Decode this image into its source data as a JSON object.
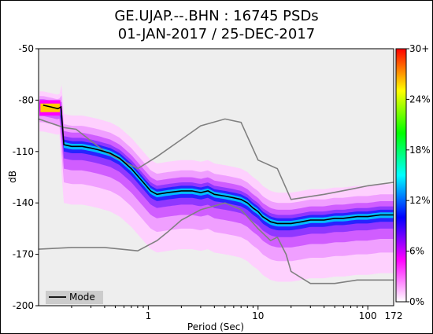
{
  "chart_data": {
    "type": "heatmap",
    "title_line1": "GE.UJAP.--.BHN : 16745 PSDs",
    "title_line2": "01-JAN-2017 / 25-DEC-2017",
    "xlabel": "Period (Sec)",
    "ylabel": "dB",
    "x_scale": "log",
    "xlim": [
      0.1,
      172
    ],
    "ylim": [
      -200,
      -50
    ],
    "y_ticks": [
      -50,
      -80,
      -110,
      -140,
      -170,
      -200
    ],
    "x_ticks": [
      {
        "value": 1,
        "label": "1"
      },
      {
        "value": 10,
        "label": "10"
      },
      {
        "value": 100,
        "label": "100"
      },
      {
        "value": 172,
        "label": "172"
      }
    ],
    "colorbar": {
      "ticks": [
        "0%",
        "6%",
        "12%",
        "18%",
        "24%",
        "30+"
      ],
      "min_percent": 0,
      "max_percent": 30,
      "colors": [
        "#ffffff",
        "#ff00ff",
        "#0000ff",
        "#00ffff",
        "#00ff00",
        "#ffff00",
        "#ff0000"
      ]
    },
    "legend": {
      "position": "bottom-left",
      "entries": [
        "Mode"
      ]
    },
    "mode_series": {
      "name": "Mode",
      "color": "#000000",
      "x": [
        0.11,
        0.13,
        0.15,
        0.16,
        0.17,
        0.2,
        0.25,
        0.3,
        0.35,
        0.45,
        0.55,
        0.7,
        0.9,
        1.05,
        1.2,
        1.5,
        2,
        2.5,
        3,
        3.5,
        4,
        5,
        6,
        7,
        8,
        9,
        10,
        11,
        13,
        15,
        20,
        25,
        30,
        40,
        50,
        60,
        80,
        100,
        130,
        172
      ],
      "y": [
        -83,
        -84,
        -85,
        -84,
        -106,
        -107,
        -107,
        -108,
        -109,
        -111,
        -114,
        -120,
        -128,
        -133,
        -135,
        -134,
        -133,
        -133,
        -134,
        -133,
        -135,
        -136,
        -137,
        -138,
        -140,
        -143,
        -145,
        -148,
        -151,
        -152,
        -152,
        -151,
        -150,
        -150,
        -149,
        -149,
        -148,
        -148,
        -147,
        -147
      ]
    },
    "noise_models": [
      {
        "name": "high",
        "color": "#808080",
        "x": [
          0.1,
          0.17,
          0.22,
          0.4,
          0.8,
          1.2,
          2,
          3,
          5,
          7,
          10,
          15,
          20,
          40,
          70,
          100,
          172
        ],
        "y": [
          -91,
          -96,
          -97,
          -110,
          -120,
          -113,
          -103,
          -95,
          -91,
          -93,
          -115,
          -120,
          -138,
          -135,
          -132,
          -130,
          -128
        ]
      },
      {
        "name": "low",
        "color": "#808080",
        "x": [
          0.1,
          0.2,
          0.4,
          0.8,
          1.2,
          1.5,
          2,
          3,
          5,
          7,
          10,
          13,
          15,
          18,
          20,
          30,
          50,
          80,
          100,
          172
        ],
        "y": [
          -167,
          -166,
          -166,
          -168,
          -162,
          -157,
          -150,
          -144,
          -140,
          -144,
          -155,
          -162,
          -160,
          -170,
          -180,
          -187,
          -187,
          -185,
          -185,
          -185
        ]
      }
    ]
  }
}
